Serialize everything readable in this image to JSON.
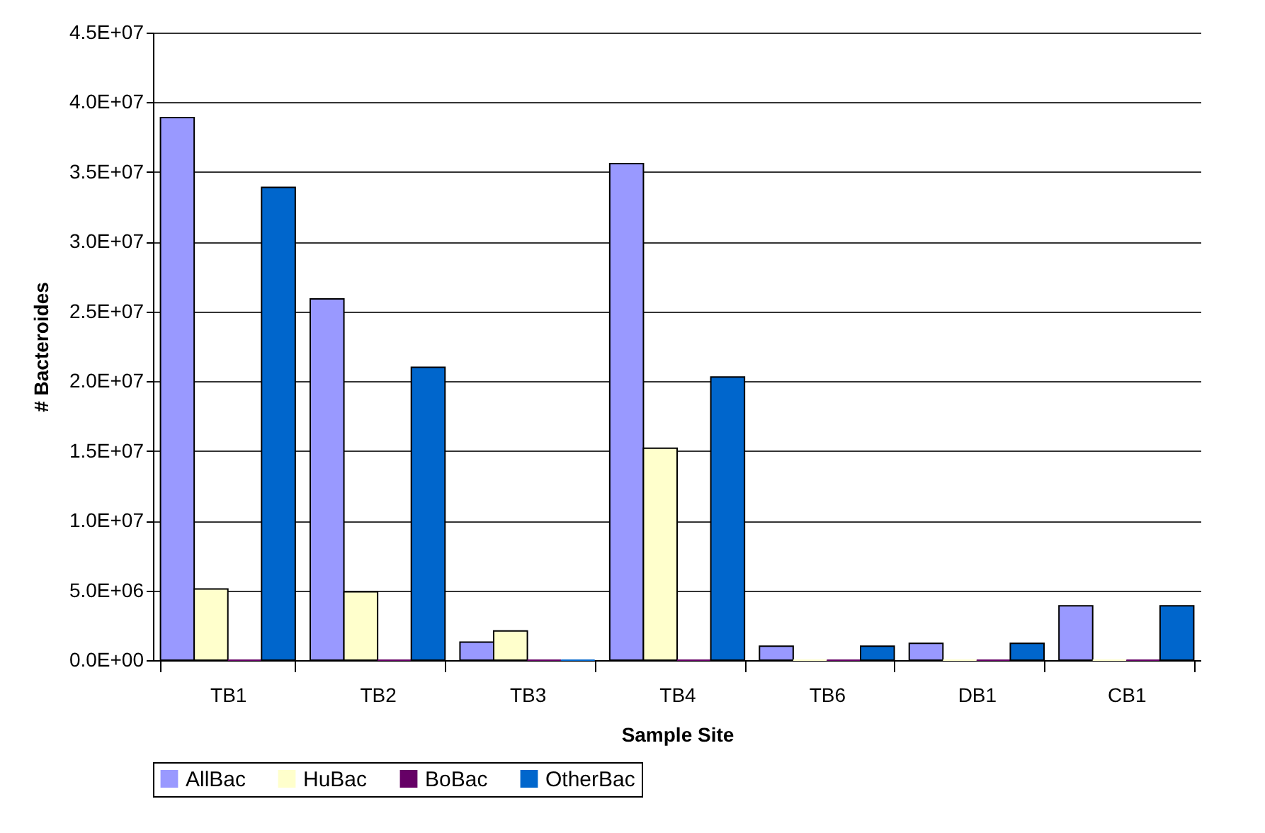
{
  "chart_data": {
    "type": "bar",
    "xlabel": "Sample Site",
    "ylabel": "# Bacteroides",
    "categories": [
      "TB1",
      "TB2",
      "TB3",
      "TB4",
      "TB6",
      "DB1",
      "CB1"
    ],
    "series": [
      {
        "name": "AllBac",
        "color": "#9999ff",
        "values": [
          38900000,
          25900000,
          1300000,
          35600000,
          1000000,
          1200000,
          3900000
        ]
      },
      {
        "name": "HuBac",
        "color": "#ffffcc",
        "values": [
          5100000,
          4900000,
          2100000,
          15200000,
          0,
          0,
          0
        ]
      },
      {
        "name": "BoBac",
        "color": "#660066",
        "values": [
          0,
          0,
          0,
          0,
          0,
          0,
          0
        ]
      },
      {
        "name": "OtherBac",
        "color": "#0066cc",
        "values": [
          33900000,
          21000000,
          0,
          20300000,
          1000000,
          1200000,
          3900000
        ]
      }
    ],
    "ylim": [
      0,
      45000000
    ],
    "yticks": [
      {
        "value": 0,
        "label": "0.0E+00"
      },
      {
        "value": 5000000,
        "label": "5.0E+06"
      },
      {
        "value": 10000000,
        "label": "1.0E+07"
      },
      {
        "value": 15000000,
        "label": "1.5E+07"
      },
      {
        "value": 20000000,
        "label": "2.0E+07"
      },
      {
        "value": 25000000,
        "label": "2.5E+07"
      },
      {
        "value": 30000000,
        "label": "3.0E+07"
      },
      {
        "value": 35000000,
        "label": "3.5E+07"
      },
      {
        "value": 40000000,
        "label": "4.0E+07"
      },
      {
        "value": 45000000,
        "label": "4.5E+07"
      }
    ],
    "grid": "y",
    "legend": "bottom"
  }
}
